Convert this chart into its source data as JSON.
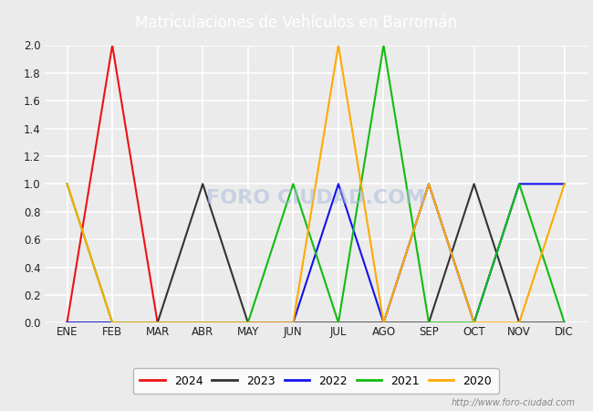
{
  "title": "Matriculaciones de Vehículos en Barromán",
  "title_bg_color": "#4E7FBF",
  "title_font_color": "white",
  "plot_bg_color": "#EBEBEB",
  "fig_bg_color": "#EBEBEB",
  "grid_color": "white",
  "months": [
    "ENE",
    "FEB",
    "MAR",
    "ABR",
    "MAY",
    "JUN",
    "JUL",
    "AGO",
    "SEP",
    "OCT",
    "NOV",
    "DIC"
  ],
  "month_indices": [
    1,
    2,
    3,
    4,
    5,
    6,
    7,
    8,
    9,
    10,
    11,
    12
  ],
  "series": {
    "2024": {
      "color": "#EE1111",
      "data": [
        0,
        2,
        0,
        0,
        0,
        null,
        null,
        null,
        null,
        null,
        null,
        null
      ]
    },
    "2023": {
      "color": "#333333",
      "data": [
        0,
        0,
        0,
        1,
        0,
        0,
        0,
        0,
        0,
        1,
        0,
        0
      ]
    },
    "2022": {
      "color": "#1111EE",
      "data": [
        0,
        0,
        0,
        0,
        0,
        0,
        1,
        0,
        1,
        0,
        1,
        1
      ]
    },
    "2021": {
      "color": "#11BB11",
      "data": [
        1,
        0,
        0,
        0,
        0,
        1,
        0,
        2,
        0,
        0,
        1,
        0
      ]
    },
    "2020": {
      "color": "#FFAA00",
      "data": [
        1,
        0,
        0,
        0,
        0,
        0,
        2,
        0,
        1,
        0,
        0,
        1
      ]
    }
  },
  "ylim": [
    0,
    2.0
  ],
  "yticks": [
    0.0,
    0.2,
    0.4,
    0.6,
    0.8,
    1.0,
    1.2,
    1.4,
    1.6,
    1.8,
    2.0
  ],
  "legend_order": [
    "2024",
    "2023",
    "2022",
    "2021",
    "2020"
  ],
  "watermark": "FORO CIUDAD.COM",
  "url_text": "http://www.foro-ciudad.com"
}
